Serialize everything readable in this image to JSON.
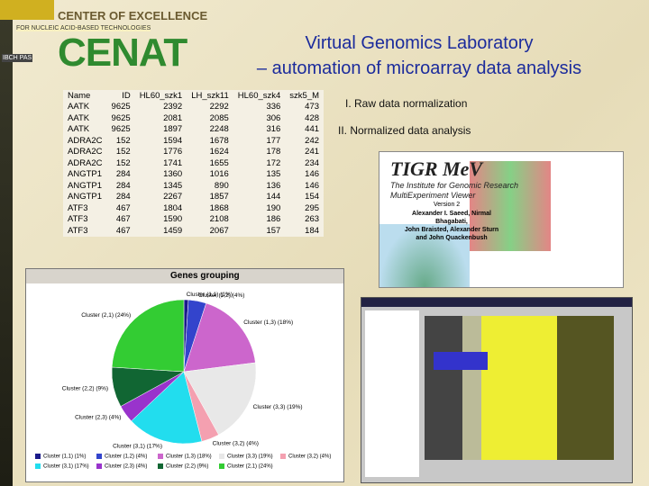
{
  "logo": {
    "line1": "CENTER OF EXCELLENCE",
    "line2": "FOR NUCLEIC ACID-BASED TECHNOLOGIES",
    "name": "CENAT",
    "unit": "IBCH PAS"
  },
  "title": {
    "line1": "Virtual Genomics Laboratory",
    "line2": "– automation of microarray data analysis"
  },
  "table": {
    "header": [
      "Name",
      "ID",
      "HL60_szk1",
      "LH_szk11",
      "HL60_szk4",
      "szk5_M"
    ],
    "rows": [
      [
        "AATK",
        "9625",
        "2392",
        "2292",
        "336",
        "473"
      ],
      [
        "AATK",
        "9625",
        "2081",
        "2085",
        "306",
        "428"
      ],
      [
        "AATK",
        "9625",
        "1897",
        "2248",
        "316",
        "441"
      ],
      [
        "ADRA2C",
        "152",
        "1594",
        "1678",
        "177",
        "242"
      ],
      [
        "ADRA2C",
        "152",
        "1776",
        "1624",
        "178",
        "241"
      ],
      [
        "ADRA2C",
        "152",
        "1741",
        "1655",
        "172",
        "234"
      ],
      [
        "ANGTP1",
        "284",
        "1360",
        "1016",
        "135",
        "146"
      ],
      [
        "ANGTP1",
        "284",
        "1345",
        "890",
        "136",
        "146"
      ],
      [
        "ANGTP1",
        "284",
        "2267",
        "1857",
        "144",
        "154"
      ],
      [
        "ATF3",
        "467",
        "1804",
        "1868",
        "190",
        "295"
      ],
      [
        "ATF3",
        "467",
        "1590",
        "2108",
        "186",
        "263"
      ],
      [
        "ATF3",
        "467",
        "1459",
        "2067",
        "157",
        "184"
      ]
    ]
  },
  "sections": [
    "I. Raw data normalization",
    "II. Normalized data analysis"
  ],
  "splash": {
    "name": "TIGR MeV",
    "institute": "The Institute for Genomic Research",
    "product": "MultiExperiment Viewer",
    "version": "Version 2",
    "authors": [
      "Alexander I. Saeed, Nirmal Bhagabati,",
      "John Braisted, Alexander Sturn",
      "and John Quackenbush"
    ]
  },
  "chart_data": {
    "type": "pie",
    "title": "Genes grouping",
    "categories": [
      "Cluster (1,1) (1%)",
      "Cluster (1,2) (4%)",
      "Cluster (1,3) (18%)",
      "Cluster (3,3) (19%)",
      "Cluster (3,2) (4%)",
      "Cluster (3,1) (17%)",
      "Cluster (2,3) (4%)",
      "Cluster (2,2) (9%)",
      "Cluster (2,1) (24%)"
    ],
    "values": [
      1,
      4,
      18,
      19,
      4,
      17,
      4,
      9,
      24
    ],
    "colors": [
      "#1a1a8a",
      "#3344cc",
      "#cc66cc",
      "#e8e8e8",
      "#f4a0b0",
      "#22ddee",
      "#9933cc",
      "#116633",
      "#33cc33"
    ]
  }
}
